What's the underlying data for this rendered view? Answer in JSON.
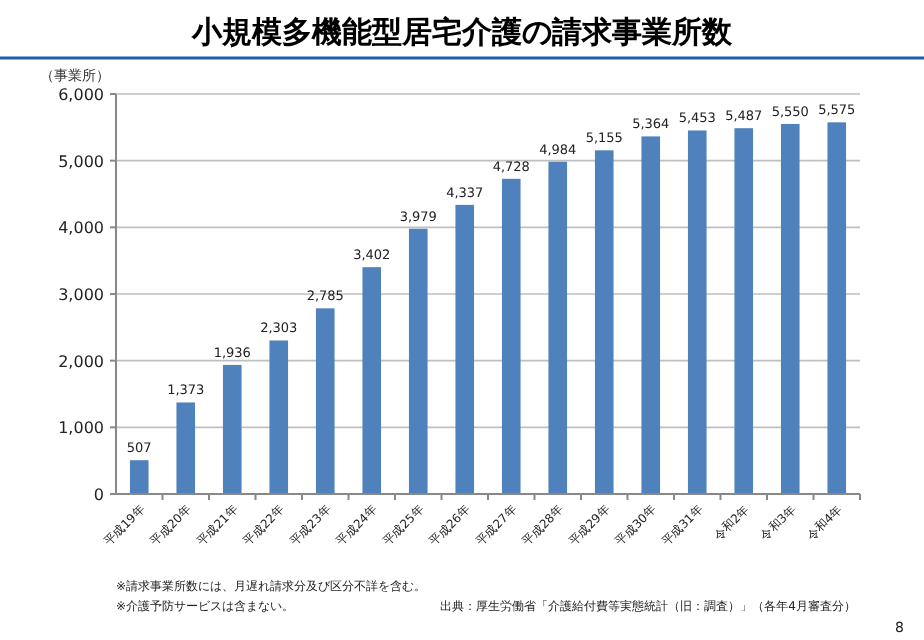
{
  "chart_data": {
    "type": "bar",
    "title": "小規模多機能型居宅介護の請求事業所数",
    "ylabel": "（事業所）",
    "categories": [
      "平成19年",
      "平成20年",
      "平成21年",
      "平成22年",
      "平成23年",
      "平成24年",
      "平成25年",
      "平成26年",
      "平成27年",
      "平成28年",
      "平成29年",
      "平成30年",
      "平成31年",
      "令和2年",
      "令和3年",
      "令和4年"
    ],
    "values": [
      507,
      1373,
      1936,
      2303,
      2785,
      3402,
      3979,
      4337,
      4728,
      4984,
      5155,
      5364,
      5453,
      5487,
      5550,
      5575
    ],
    "color": "#4f81bd",
    "ylim": [
      0,
      6000
    ],
    "yticks": [
      0,
      {
        "value": 1000,
        "label": "1,000"
      },
      {
        "value": 2000,
        "label": "2,000"
      },
      {
        "value": 3000,
        "label": "3,000"
      },
      {
        "value": 4000,
        "label": "4,000"
      },
      {
        "value": 5000,
        "label": "5,000"
      },
      {
        "value": 6000,
        "label": "6,000"
      }
    ],
    "value_labels": [
      "507",
      "1,373",
      "1,936",
      "2,303",
      "2,785",
      "3,402",
      "3,979",
      "4,337",
      "4,728",
      "4,984",
      "5,155",
      "5,364",
      "5,453",
      "5,487",
      "5,550",
      "5,575"
    ],
    "grid": "y",
    "annotations": [
      "※請求事業所数には、月遅れ請求分及び区分不詳を含む。",
      "※介護予防サービスは含まない。",
      "出典：厚生労働省「介護給付費等実態統計（旧：調査）」（各年4月審査分）",
      "8"
    ]
  }
}
